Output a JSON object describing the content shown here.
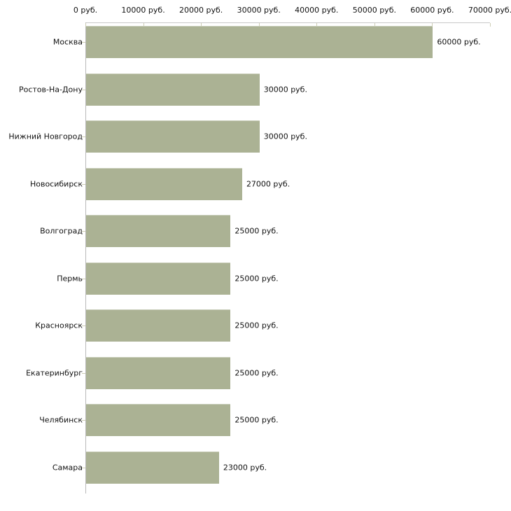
{
  "chart_data": {
    "type": "bar",
    "orientation": "horizontal",
    "title": "",
    "xlabel": "",
    "ylabel": "",
    "xlim": [
      0,
      70000
    ],
    "x_tick_interval": 10000,
    "x_tick_labels": [
      "0 руб.",
      "10000 руб.",
      "20000 руб.",
      "30000 руб.",
      "40000 руб.",
      "50000 руб.",
      "60000 руб.",
      "70000 руб."
    ],
    "categories": [
      "Москва",
      "Ростов-На-Дону",
      "Нижний Новгород",
      "Новосибирск",
      "Волгоград",
      "Пермь",
      "Красноярск",
      "Екатеринбург",
      "Челябинск",
      "Самара"
    ],
    "values": [
      60000,
      30000,
      30000,
      27000,
      25000,
      25000,
      25000,
      25000,
      25000,
      23000
    ],
    "value_labels": [
      "60000 руб.",
      "30000 руб.",
      "30000 руб.",
      "27000 руб.",
      "25000 руб.",
      "25000 руб.",
      "25000 руб.",
      "25000 руб.",
      "25000 руб.",
      "23000 руб."
    ],
    "grid": false,
    "legend": null,
    "axis_position": "top",
    "colors": {
      "bar_fill": "#abb294",
      "x_axis_line": "#c9c9c9",
      "y_axis_line": "#b9b9b9",
      "tick": "#cdcdb4",
      "text": "#111111",
      "background": "#ffffff"
    }
  }
}
